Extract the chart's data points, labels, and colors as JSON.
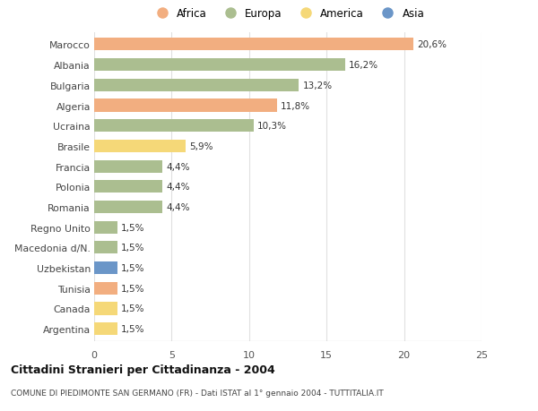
{
  "countries": [
    "Marocco",
    "Albania",
    "Bulgaria",
    "Algeria",
    "Ucraina",
    "Brasile",
    "Francia",
    "Polonia",
    "Romania",
    "Regno Unito",
    "Macedonia d/N.",
    "Uzbekistan",
    "Tunisia",
    "Canada",
    "Argentina"
  ],
  "values": [
    20.6,
    16.2,
    13.2,
    11.8,
    10.3,
    5.9,
    4.4,
    4.4,
    4.4,
    1.5,
    1.5,
    1.5,
    1.5,
    1.5,
    1.5
  ],
  "labels": [
    "20,6%",
    "16,2%",
    "13,2%",
    "11,8%",
    "10,3%",
    "5,9%",
    "4,4%",
    "4,4%",
    "4,4%",
    "1,5%",
    "1,5%",
    "1,5%",
    "1,5%",
    "1,5%",
    "1,5%"
  ],
  "continents": [
    "Africa",
    "Europa",
    "Europa",
    "Africa",
    "Europa",
    "America",
    "Europa",
    "Europa",
    "Europa",
    "Europa",
    "Europa",
    "Asia",
    "Africa",
    "America",
    "America"
  ],
  "colors": {
    "Africa": "#F2AE80",
    "Europa": "#ABBE90",
    "America": "#F5D878",
    "Asia": "#6B96C8"
  },
  "title": "Cittadini Stranieri per Cittadinanza - 2004",
  "subtitle": "COMUNE DI PIEDIMONTE SAN GERMANO (FR) - Dati ISTAT al 1° gennaio 2004 - TUTTITALIA.IT",
  "xlim": [
    0,
    25
  ],
  "xticks": [
    0,
    5,
    10,
    15,
    20,
    25
  ],
  "background_color": "#ffffff",
  "bar_height": 0.62,
  "grid_color": "#e0e0e0",
  "legend_order": [
    "Africa",
    "Europa",
    "America",
    "Asia"
  ]
}
